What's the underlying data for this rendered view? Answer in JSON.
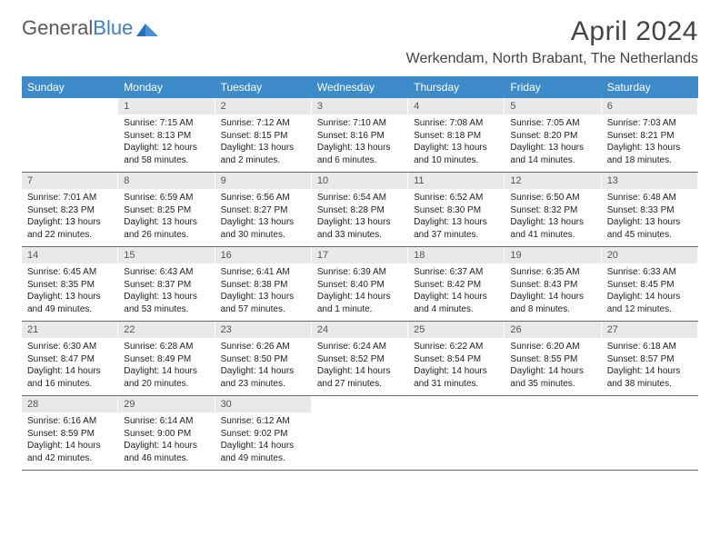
{
  "brand": {
    "part1": "General",
    "part2": "Blue"
  },
  "title": "April 2024",
  "location": "Werkendam, North Brabant, The Netherlands",
  "colors": {
    "header_bg": "#3d8bc9",
    "header_text": "#ffffff",
    "daynum_bg": "#e9e9e9",
    "border": "#6a6a6a",
    "title_color": "#444444",
    "body_text": "#222222"
  },
  "dayHeaders": [
    "Sunday",
    "Monday",
    "Tuesday",
    "Wednesday",
    "Thursday",
    "Friday",
    "Saturday"
  ],
  "weeks": [
    [
      {
        "num": "",
        "lines": []
      },
      {
        "num": "1",
        "lines": [
          "Sunrise: 7:15 AM",
          "Sunset: 8:13 PM",
          "Daylight: 12 hours and 58 minutes."
        ]
      },
      {
        "num": "2",
        "lines": [
          "Sunrise: 7:12 AM",
          "Sunset: 8:15 PM",
          "Daylight: 13 hours and 2 minutes."
        ]
      },
      {
        "num": "3",
        "lines": [
          "Sunrise: 7:10 AM",
          "Sunset: 8:16 PM",
          "Daylight: 13 hours and 6 minutes."
        ]
      },
      {
        "num": "4",
        "lines": [
          "Sunrise: 7:08 AM",
          "Sunset: 8:18 PM",
          "Daylight: 13 hours and 10 minutes."
        ]
      },
      {
        "num": "5",
        "lines": [
          "Sunrise: 7:05 AM",
          "Sunset: 8:20 PM",
          "Daylight: 13 hours and 14 minutes."
        ]
      },
      {
        "num": "6",
        "lines": [
          "Sunrise: 7:03 AM",
          "Sunset: 8:21 PM",
          "Daylight: 13 hours and 18 minutes."
        ]
      }
    ],
    [
      {
        "num": "7",
        "lines": [
          "Sunrise: 7:01 AM",
          "Sunset: 8:23 PM",
          "Daylight: 13 hours and 22 minutes."
        ]
      },
      {
        "num": "8",
        "lines": [
          "Sunrise: 6:59 AM",
          "Sunset: 8:25 PM",
          "Daylight: 13 hours and 26 minutes."
        ]
      },
      {
        "num": "9",
        "lines": [
          "Sunrise: 6:56 AM",
          "Sunset: 8:27 PM",
          "Daylight: 13 hours and 30 minutes."
        ]
      },
      {
        "num": "10",
        "lines": [
          "Sunrise: 6:54 AM",
          "Sunset: 8:28 PM",
          "Daylight: 13 hours and 33 minutes."
        ]
      },
      {
        "num": "11",
        "lines": [
          "Sunrise: 6:52 AM",
          "Sunset: 8:30 PM",
          "Daylight: 13 hours and 37 minutes."
        ]
      },
      {
        "num": "12",
        "lines": [
          "Sunrise: 6:50 AM",
          "Sunset: 8:32 PM",
          "Daylight: 13 hours and 41 minutes."
        ]
      },
      {
        "num": "13",
        "lines": [
          "Sunrise: 6:48 AM",
          "Sunset: 8:33 PM",
          "Daylight: 13 hours and 45 minutes."
        ]
      }
    ],
    [
      {
        "num": "14",
        "lines": [
          "Sunrise: 6:45 AM",
          "Sunset: 8:35 PM",
          "Daylight: 13 hours and 49 minutes."
        ]
      },
      {
        "num": "15",
        "lines": [
          "Sunrise: 6:43 AM",
          "Sunset: 8:37 PM",
          "Daylight: 13 hours and 53 minutes."
        ]
      },
      {
        "num": "16",
        "lines": [
          "Sunrise: 6:41 AM",
          "Sunset: 8:38 PM",
          "Daylight: 13 hours and 57 minutes."
        ]
      },
      {
        "num": "17",
        "lines": [
          "Sunrise: 6:39 AM",
          "Sunset: 8:40 PM",
          "Daylight: 14 hours and 1 minute."
        ]
      },
      {
        "num": "18",
        "lines": [
          "Sunrise: 6:37 AM",
          "Sunset: 8:42 PM",
          "Daylight: 14 hours and 4 minutes."
        ]
      },
      {
        "num": "19",
        "lines": [
          "Sunrise: 6:35 AM",
          "Sunset: 8:43 PM",
          "Daylight: 14 hours and 8 minutes."
        ]
      },
      {
        "num": "20",
        "lines": [
          "Sunrise: 6:33 AM",
          "Sunset: 8:45 PM",
          "Daylight: 14 hours and 12 minutes."
        ]
      }
    ],
    [
      {
        "num": "21",
        "lines": [
          "Sunrise: 6:30 AM",
          "Sunset: 8:47 PM",
          "Daylight: 14 hours and 16 minutes."
        ]
      },
      {
        "num": "22",
        "lines": [
          "Sunrise: 6:28 AM",
          "Sunset: 8:49 PM",
          "Daylight: 14 hours and 20 minutes."
        ]
      },
      {
        "num": "23",
        "lines": [
          "Sunrise: 6:26 AM",
          "Sunset: 8:50 PM",
          "Daylight: 14 hours and 23 minutes."
        ]
      },
      {
        "num": "24",
        "lines": [
          "Sunrise: 6:24 AM",
          "Sunset: 8:52 PM",
          "Daylight: 14 hours and 27 minutes."
        ]
      },
      {
        "num": "25",
        "lines": [
          "Sunrise: 6:22 AM",
          "Sunset: 8:54 PM",
          "Daylight: 14 hours and 31 minutes."
        ]
      },
      {
        "num": "26",
        "lines": [
          "Sunrise: 6:20 AM",
          "Sunset: 8:55 PM",
          "Daylight: 14 hours and 35 minutes."
        ]
      },
      {
        "num": "27",
        "lines": [
          "Sunrise: 6:18 AM",
          "Sunset: 8:57 PM",
          "Daylight: 14 hours and 38 minutes."
        ]
      }
    ],
    [
      {
        "num": "28",
        "lines": [
          "Sunrise: 6:16 AM",
          "Sunset: 8:59 PM",
          "Daylight: 14 hours and 42 minutes."
        ]
      },
      {
        "num": "29",
        "lines": [
          "Sunrise: 6:14 AM",
          "Sunset: 9:00 PM",
          "Daylight: 14 hours and 46 minutes."
        ]
      },
      {
        "num": "30",
        "lines": [
          "Sunrise: 6:12 AM",
          "Sunset: 9:02 PM",
          "Daylight: 14 hours and 49 minutes."
        ]
      },
      {
        "num": "",
        "lines": []
      },
      {
        "num": "",
        "lines": []
      },
      {
        "num": "",
        "lines": []
      },
      {
        "num": "",
        "lines": []
      }
    ]
  ]
}
